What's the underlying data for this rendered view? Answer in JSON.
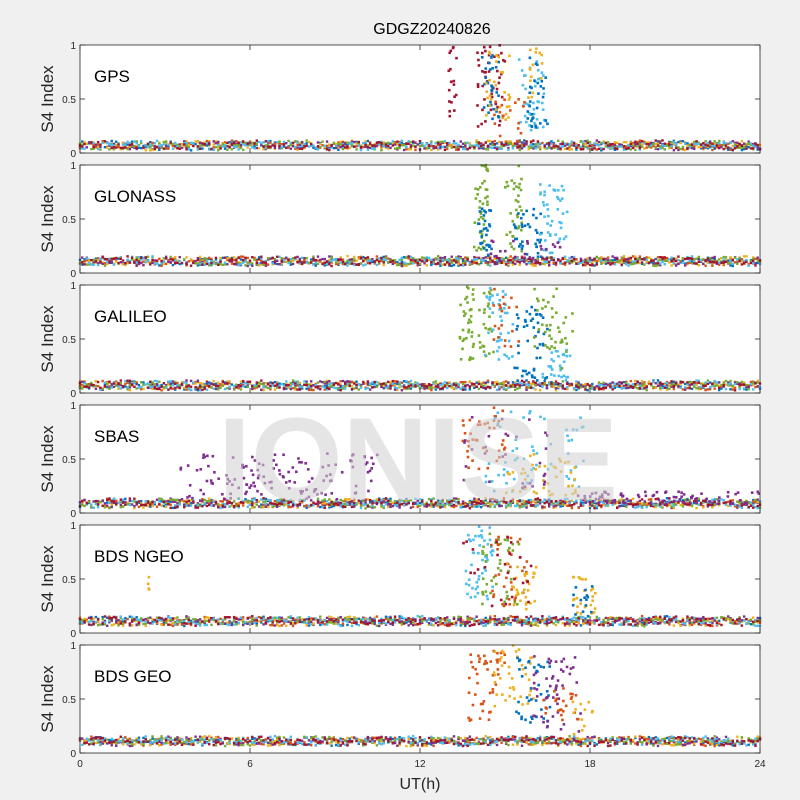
{
  "chart_data": {
    "type": "scatter",
    "title": "GDGZ20240826",
    "xlabel": "UT(h)",
    "ylabel": "S4 Index",
    "xlim": [
      0,
      24
    ],
    "ylim": [
      0,
      1
    ],
    "x_ticks": [
      "0",
      "6",
      "12",
      "18",
      "24"
    ],
    "y_ticks": [
      "0",
      "0.5",
      "1"
    ],
    "watermark": "IONISE",
    "colors": [
      "#0072BD",
      "#D95319",
      "#EDB120",
      "#7E2F8E",
      "#77AC30",
      "#4DBEEE",
      "#A2142F"
    ],
    "panels": [
      {
        "name": "GPS",
        "baseline": 0.07,
        "bursts": [
          {
            "x": [
              13.0,
              13.3
            ],
            "y": [
              0.3,
              1.0
            ],
            "color": 6,
            "n": 18
          },
          {
            "x": [
              14.0,
              15.0
            ],
            "y": [
              0.2,
              1.0
            ],
            "color": 6,
            "n": 45
          },
          {
            "x": [
              14.1,
              14.8
            ],
            "y": [
              0.3,
              0.95
            ],
            "color": 0,
            "n": 30
          },
          {
            "x": [
              14.3,
              15.2
            ],
            "y": [
              0.3,
              0.95
            ],
            "color": 2,
            "n": 30
          },
          {
            "x": [
              15.5,
              16.5
            ],
            "y": [
              0.2,
              0.9
            ],
            "color": 5,
            "n": 40
          },
          {
            "x": [
              15.8,
              16.5
            ],
            "y": [
              0.2,
              0.9
            ],
            "color": 0,
            "n": 30
          },
          {
            "x": [
              14.6,
              15.7
            ],
            "y": [
              0.1,
              0.5
            ],
            "color": 1,
            "n": 20
          },
          {
            "x": [
              15.8,
              16.4
            ],
            "y": [
              0.5,
              0.97
            ],
            "color": 2,
            "n": 15
          }
        ]
      },
      {
        "name": "GLONASS",
        "baseline": 0.11,
        "bursts": [
          {
            "x": [
              13.9,
              14.4
            ],
            "y": [
              0.2,
              1.0
            ],
            "color": 4,
            "n": 40
          },
          {
            "x": [
              14.0,
              14.6
            ],
            "y": [
              0.15,
              0.6
            ],
            "color": 0,
            "n": 30
          },
          {
            "x": [
              15.0,
              15.6
            ],
            "y": [
              0.2,
              1.0
            ],
            "color": 4,
            "n": 35
          },
          {
            "x": [
              15.3,
              16.3
            ],
            "y": [
              0.15,
              0.6
            ],
            "color": 0,
            "n": 35
          },
          {
            "x": [
              16.2,
              17.2
            ],
            "y": [
              0.15,
              0.82
            ],
            "color": 5,
            "n": 45
          },
          {
            "x": [
              14.5,
              17.0
            ],
            "y": [
              0.1,
              0.3
            ],
            "color": 3,
            "n": 25
          }
        ]
      },
      {
        "name": "GALILEO",
        "baseline": 0.07,
        "bursts": [
          {
            "x": [
              13.4,
              14.6
            ],
            "y": [
              0.3,
              1.0
            ],
            "color": 4,
            "n": 60
          },
          {
            "x": [
              14.3,
              15.3
            ],
            "y": [
              0.3,
              1.0
            ],
            "color": 5,
            "n": 40
          },
          {
            "x": [
              14.6,
              15.5
            ],
            "y": [
              0.4,
              0.98
            ],
            "color": 1,
            "n": 20
          },
          {
            "x": [
              15.3,
              16.5
            ],
            "y": [
              0.1,
              0.8
            ],
            "color": 0,
            "n": 50
          },
          {
            "x": [
              16.0,
              16.9
            ],
            "y": [
              0.4,
              1.0
            ],
            "color": 4,
            "n": 30
          },
          {
            "x": [
              16.3,
              17.4
            ],
            "y": [
              0.1,
              0.4
            ],
            "color": 5,
            "n": 30
          },
          {
            "x": [
              16.9,
              17.4
            ],
            "y": [
              0.1,
              0.75
            ],
            "color": 4,
            "n": 12
          }
        ]
      },
      {
        "name": "SBAS",
        "baseline": 0.09,
        "bursts": [
          {
            "x": [
              3.5,
              10.5
            ],
            "y": [
              0.12,
              0.55
            ],
            "color": 3,
            "n": 130
          },
          {
            "x": [
              13.5,
              15.0
            ],
            "y": [
              0.4,
              1.0
            ],
            "color": 1,
            "n": 40
          },
          {
            "x": [
              14.2,
              17.8
            ],
            "y": [
              0.2,
              0.95
            ],
            "color": 5,
            "n": 60
          },
          {
            "x": [
              15.0,
              17.5
            ],
            "y": [
              0.15,
              0.55
            ],
            "color": 2,
            "n": 45
          },
          {
            "x": [
              17.5,
              24.0
            ],
            "y": [
              0.08,
              0.2
            ],
            "color": 3,
            "n": 80
          },
          {
            "x": [
              13.5,
              16.5
            ],
            "y": [
              0.2,
              0.95
            ],
            "color": 3,
            "n": 30
          }
        ]
      },
      {
        "name": "BDS NGEO",
        "baseline": 0.11,
        "bursts": [
          {
            "x": [
              2.4,
              2.5
            ],
            "y": [
              0.35,
              0.55
            ],
            "color": 2,
            "n": 4
          },
          {
            "x": [
              13.6,
              14.6
            ],
            "y": [
              0.3,
              1.0
            ],
            "color": 5,
            "n": 50
          },
          {
            "x": [
              14.2,
              15.5
            ],
            "y": [
              0.25,
              0.95
            ],
            "color": 4,
            "n": 40
          },
          {
            "x": [
              14.5,
              15.8
            ],
            "y": [
              0.25,
              0.9
            ],
            "color": 1,
            "n": 35
          },
          {
            "x": [
              15.0,
              16.2
            ],
            "y": [
              0.2,
              0.65
            ],
            "color": 2,
            "n": 30
          },
          {
            "x": [
              13.5,
              16.0
            ],
            "y": [
              0.2,
              0.9
            ],
            "color": 6,
            "n": 25
          },
          {
            "x": [
              17.4,
              18.2
            ],
            "y": [
              0.15,
              0.55
            ],
            "color": 2,
            "n": 25
          },
          {
            "x": [
              17.4,
              18.2
            ],
            "y": [
              0.15,
              0.45
            ],
            "color": 0,
            "n": 15
          }
        ]
      },
      {
        "name": "BDS GEO",
        "baseline": 0.11,
        "bursts": [
          {
            "x": [
              13.7,
              15.0
            ],
            "y": [
              0.3,
              0.95
            ],
            "color": 1,
            "n": 45
          },
          {
            "x": [
              14.6,
              16.0
            ],
            "y": [
              0.4,
              1.0
            ],
            "color": 2,
            "n": 40
          },
          {
            "x": [
              15.4,
              16.6
            ],
            "y": [
              0.25,
              0.9
            ],
            "color": 0,
            "n": 40
          },
          {
            "x": [
              16.0,
              17.8
            ],
            "y": [
              0.2,
              0.9
            ],
            "color": 3,
            "n": 50
          },
          {
            "x": [
              16.3,
              17.6
            ],
            "y": [
              0.3,
              0.6
            ],
            "color": 1,
            "n": 25
          },
          {
            "x": [
              17.3,
              18.1
            ],
            "y": [
              0.1,
              0.5
            ],
            "color": 2,
            "n": 15
          }
        ]
      }
    ]
  }
}
